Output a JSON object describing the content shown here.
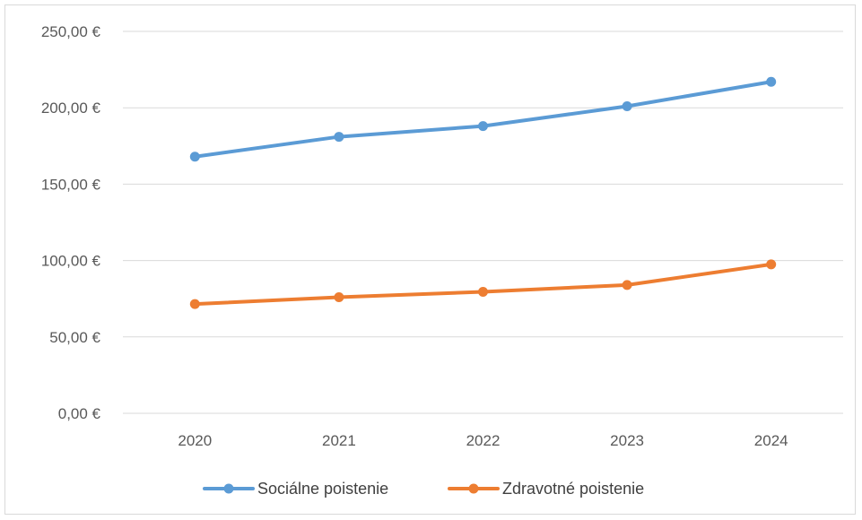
{
  "chart_data": {
    "type": "line",
    "title": "",
    "xlabel": "",
    "ylabel": "",
    "categories": [
      "2020",
      "2021",
      "2022",
      "2023",
      "2024"
    ],
    "ylim": [
      0,
      250
    ],
    "y_ticks": [
      0,
      50,
      100,
      150,
      200,
      250
    ],
    "y_tick_labels": [
      "0,00 €",
      "50,00 €",
      "100,00 €",
      "150,00 €",
      "200,00 €",
      "250,00 €"
    ],
    "grid": true,
    "legend_position": "bottom",
    "series": [
      {
        "name": "Sociálne poistenie",
        "color": "#5b9bd5",
        "values": [
          168,
          181,
          188,
          201,
          217
        ]
      },
      {
        "name": "Zdravotné poistenie",
        "color": "#ed7d31",
        "values": [
          71.5,
          76,
          79.5,
          84,
          97.5
        ]
      }
    ]
  }
}
